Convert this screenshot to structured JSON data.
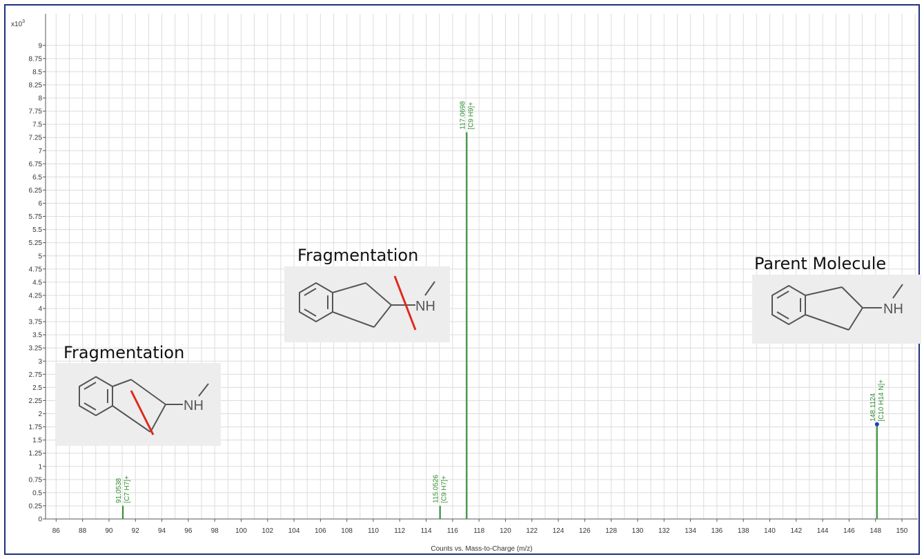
{
  "chart_data": {
    "type": "bar",
    "title": "",
    "xlabel": "Counts vs. Mass-to-Charge (m/z)",
    "ylabel": "",
    "y_multiplier_label": "x10",
    "y_multiplier_exp": "3",
    "xlim": [
      85.2,
      151.2
    ],
    "ylim": [
      0,
      9.6
    ],
    "x_ticks": [
      86,
      88,
      90,
      92,
      94,
      96,
      98,
      100,
      102,
      104,
      106,
      108,
      110,
      112,
      114,
      116,
      118,
      120,
      122,
      124,
      126,
      128,
      130,
      132,
      134,
      136,
      138,
      140,
      142,
      144,
      146,
      148,
      150
    ],
    "y_ticks": [
      "0",
      "0.25",
      "0.5",
      "0.75",
      "1",
      "1.25",
      "1.5",
      "1.75",
      "2",
      "2.25",
      "2.5",
      "2.75",
      "3",
      "3.25",
      "3.5",
      "3.75",
      "4",
      "4.25",
      "4.5",
      "4.75",
      "5",
      "5.25",
      "5.5",
      "5.75",
      "6",
      "6.25",
      "6.5",
      "6.75",
      "7",
      "7.25",
      "7.5",
      "7.75",
      "8",
      "8.25",
      "8.5",
      "8.75",
      "9"
    ],
    "grid": true,
    "peaks": [
      {
        "mz": 91.0538,
        "value": 0.25,
        "mz_label": "91.0538",
        "formula_label": "[C7 H7]+"
      },
      {
        "mz": 115.0526,
        "value": 0.25,
        "mz_label": "115.0526",
        "formula_label": "[C9 H7]+"
      },
      {
        "mz": 117.0698,
        "value": 7.35,
        "mz_label": "117.0698",
        "formula_label": "[C9 H9]+"
      },
      {
        "mz": 148.1124,
        "value": 1.8,
        "mz_label": "148.1124",
        "formula_label": "[C10 H14 N]+",
        "marker": true
      }
    ],
    "colors": {
      "peak": "#2e8b2e",
      "marker": "#1f3fbf",
      "grid": "#dcdcdc",
      "cut_line": "#e0291a",
      "frame": "#1f2f7a"
    }
  },
  "annotations": [
    {
      "title": "Fragmentation",
      "nh_label": "NH",
      "cut": "ring"
    },
    {
      "title": "Fragmentation",
      "nh_label": "NH",
      "cut": "amine"
    },
    {
      "title": "Parent Molecule",
      "nh_label": "NH",
      "cut": "none"
    }
  ]
}
